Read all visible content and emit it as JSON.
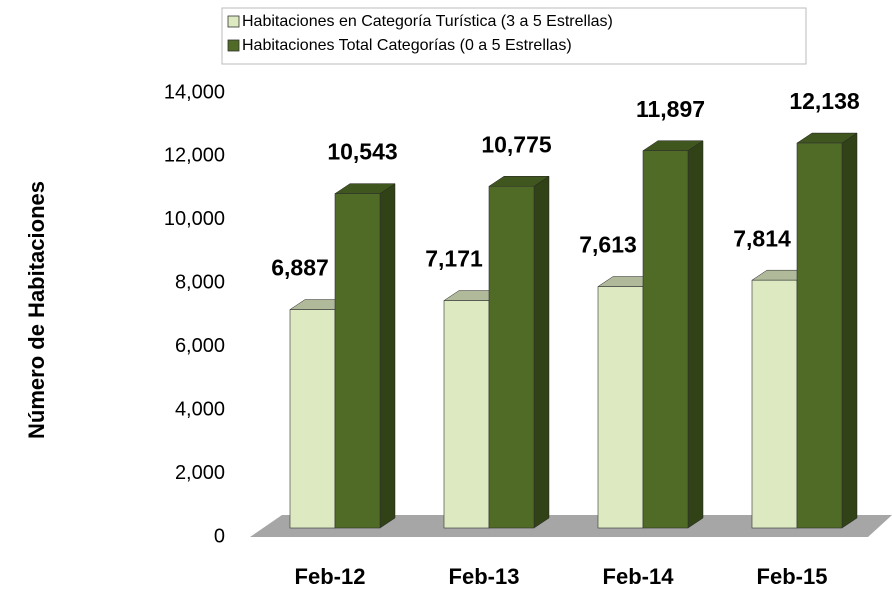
{
  "chart_data": {
    "type": "bar3d",
    "y_label": "Número de Habitaciones",
    "categories": [
      "Feb-12",
      "Feb-13",
      "Feb-14",
      "Feb-15"
    ],
    "series": [
      {
        "name": "Habitaciones en Categoría Turística (3 a 5 Estrellas)",
        "color": "#dce9c1",
        "values": [
          6887,
          7171,
          7613,
          7814
        ],
        "value_labels": [
          "6,887",
          "7,171",
          "7,613",
          "7,814"
        ]
      },
      {
        "name": "Habitaciones Total Categorías (0 a 5 Estrellas)",
        "color": "#4f6b25",
        "values": [
          10543,
          10775,
          11897,
          12138
        ],
        "value_labels": [
          "10,543",
          "10,775",
          "11,897",
          "12,138"
        ]
      }
    ],
    "ylim": [
      0,
      14000
    ],
    "yticks": [
      0,
      {
        "value": 2000,
        "label": "2,000"
      },
      {
        "value": 4000,
        "label": "4,000"
      },
      {
        "value": 6000,
        "label": "6,000"
      },
      {
        "value": 8000,
        "label": "8,000"
      },
      {
        "value": 10000,
        "label": "10,000"
      },
      {
        "value": 12000,
        "label": "12,000"
      },
      {
        "value": 14000,
        "label": "14,000"
      }
    ],
    "legend": "top"
  }
}
